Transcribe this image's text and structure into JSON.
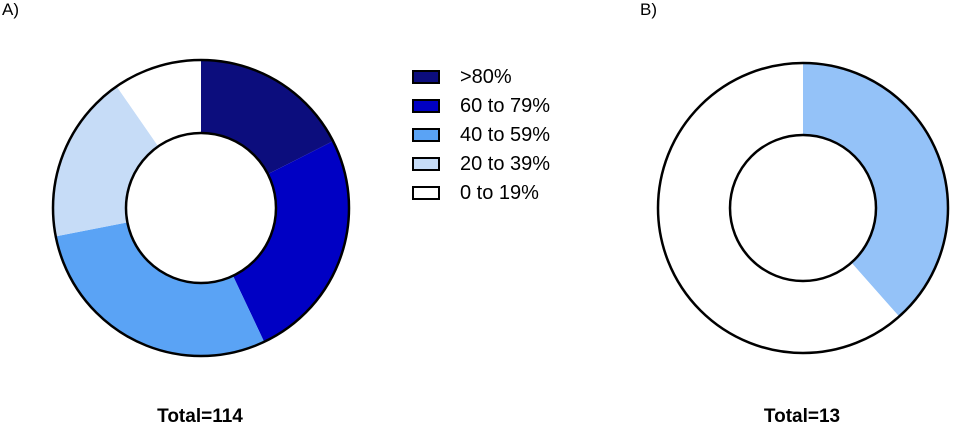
{
  "chart_data": [
    {
      "type": "pie",
      "donut": true,
      "panel_label": "A)",
      "total_label": "Total=114",
      "categories": [
        ">80%",
        "60 to 79%",
        "40 to 59%",
        "20 to 39%",
        "0 to 19%"
      ],
      "values": [
        20,
        29,
        33,
        21,
        11
      ],
      "colors": [
        "#0c0d7d",
        "#0000c4",
        "#5aa3f5",
        "#c6dcf7",
        "#ffffff"
      ]
    },
    {
      "type": "pie",
      "donut": true,
      "panel_label": "B)",
      "total_label": "Total=13",
      "categories": [
        ">80%",
        "60 to 79%",
        "40 to 59%",
        "20 to 39%",
        "0 to 19%"
      ],
      "values": [
        0,
        0,
        5,
        0,
        8
      ],
      "colors": [
        "#0c0d7d",
        "#0000c4",
        "#94c2f8",
        "#c6dcf7",
        "#ffffff"
      ]
    }
  ],
  "legend": {
    "items": [
      {
        "label": ">80%",
        "color": "#0c0d7d"
      },
      {
        "label": "60 to 79%",
        "color": "#0000c4"
      },
      {
        "label": "40 to 59%",
        "color": "#5aa3f5"
      },
      {
        "label": "20 to 39%",
        "color": "#c6dcf7"
      },
      {
        "label": "0 to 19%",
        "color": "#ffffff"
      }
    ]
  }
}
